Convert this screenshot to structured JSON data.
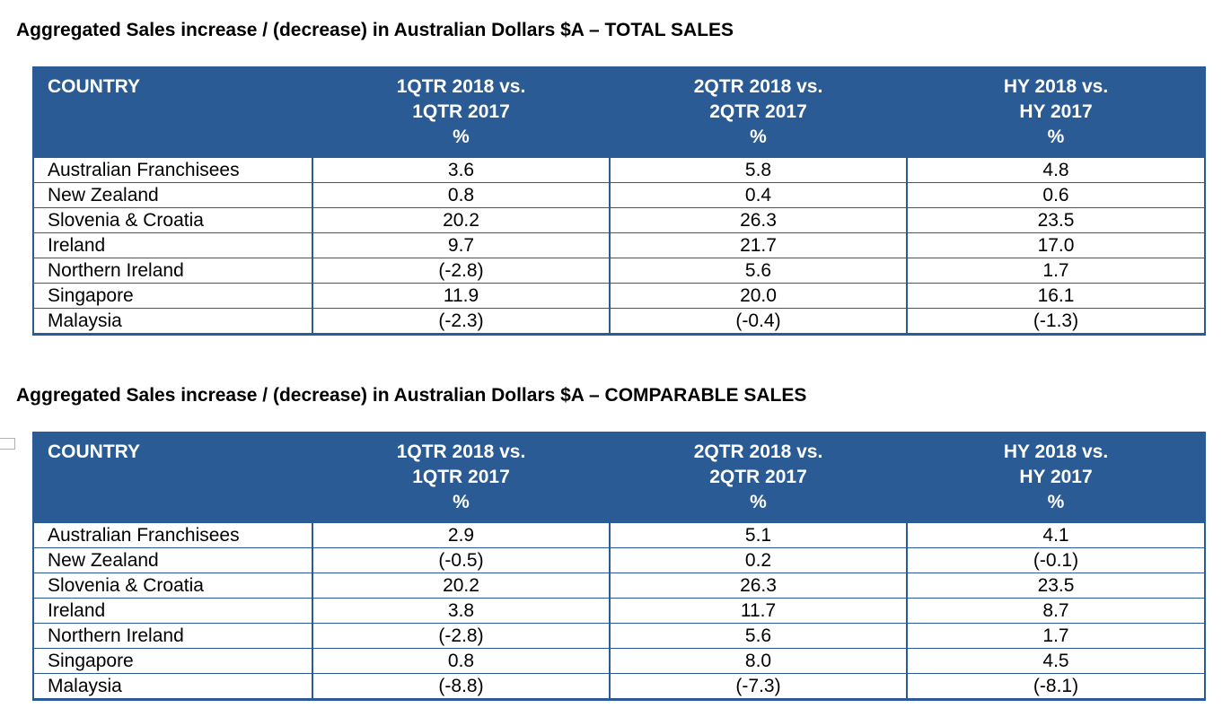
{
  "sections": [
    {
      "title": "Aggregated Sales increase / (decrease) in Australian Dollars $A – TOTAL SALES",
      "header": {
        "country": "COUNTRY",
        "periods": [
          {
            "line1": "1QTR 2018 vs.",
            "line2": "1QTR 2017",
            "unit": "%"
          },
          {
            "line1": "2QTR 2018 vs.",
            "line2": "2QTR 2017",
            "unit": "%"
          },
          {
            "line1": "HY 2018 vs.",
            "line2": "HY 2017",
            "unit": "%"
          }
        ]
      },
      "rows": [
        {
          "country": "Australian Franchisees",
          "values": [
            "3.6",
            "5.8",
            "4.8"
          ]
        },
        {
          "country": "New Zealand",
          "values": [
            "0.8",
            "0.4",
            "0.6"
          ]
        },
        {
          "country": "Slovenia & Croatia",
          "values": [
            "20.2",
            "26.3",
            "23.5"
          ]
        },
        {
          "country": "Ireland",
          "values": [
            "9.7",
            "21.7",
            "17.0"
          ]
        },
        {
          "country": "Northern Ireland",
          "values": [
            "(-2.8)",
            "5.6",
            "1.7"
          ]
        },
        {
          "country": "Singapore",
          "values": [
            "11.9",
            "20.0",
            "16.1"
          ]
        },
        {
          "country": "Malaysia",
          "values": [
            "(-2.3)",
            "(-0.4)",
            "(-1.3)"
          ]
        }
      ]
    },
    {
      "title": "Aggregated Sales increase / (decrease) in Australian Dollars $A – COMPARABLE SALES",
      "header": {
        "country": "COUNTRY",
        "periods": [
          {
            "line1": "1QTR 2018 vs.",
            "line2": "1QTR 2017",
            "unit": "%"
          },
          {
            "line1": "2QTR 2018 vs.",
            "line2": "2QTR 2017",
            "unit": "%"
          },
          {
            "line1": "HY 2018 vs.",
            "line2": "HY 2017",
            "unit": "%"
          }
        ]
      },
      "rows": [
        {
          "country": "Australian Franchisees",
          "values": [
            "2.9",
            "5.1",
            "4.1"
          ]
        },
        {
          "country": "New Zealand",
          "values": [
            "(-0.5)",
            "0.2",
            "(-0.1)"
          ]
        },
        {
          "country": "Slovenia & Croatia",
          "values": [
            "20.2",
            "26.3",
            "23.5"
          ]
        },
        {
          "country": "Ireland",
          "values": [
            "3.8",
            "11.7",
            "8.7"
          ]
        },
        {
          "country": "Northern Ireland",
          "values": [
            "(-2.8)",
            "5.6",
            "1.7"
          ]
        },
        {
          "country": "Singapore",
          "values": [
            "0.8",
            "8.0",
            "4.5"
          ]
        },
        {
          "country": "Malaysia",
          "values": [
            "(-8.8)",
            "(-7.3)",
            "(-8.1)"
          ]
        }
      ]
    }
  ],
  "colors": {
    "header_bg": "#2b5b94",
    "header_text": "#ffffff",
    "border": "#2b5b94"
  }
}
